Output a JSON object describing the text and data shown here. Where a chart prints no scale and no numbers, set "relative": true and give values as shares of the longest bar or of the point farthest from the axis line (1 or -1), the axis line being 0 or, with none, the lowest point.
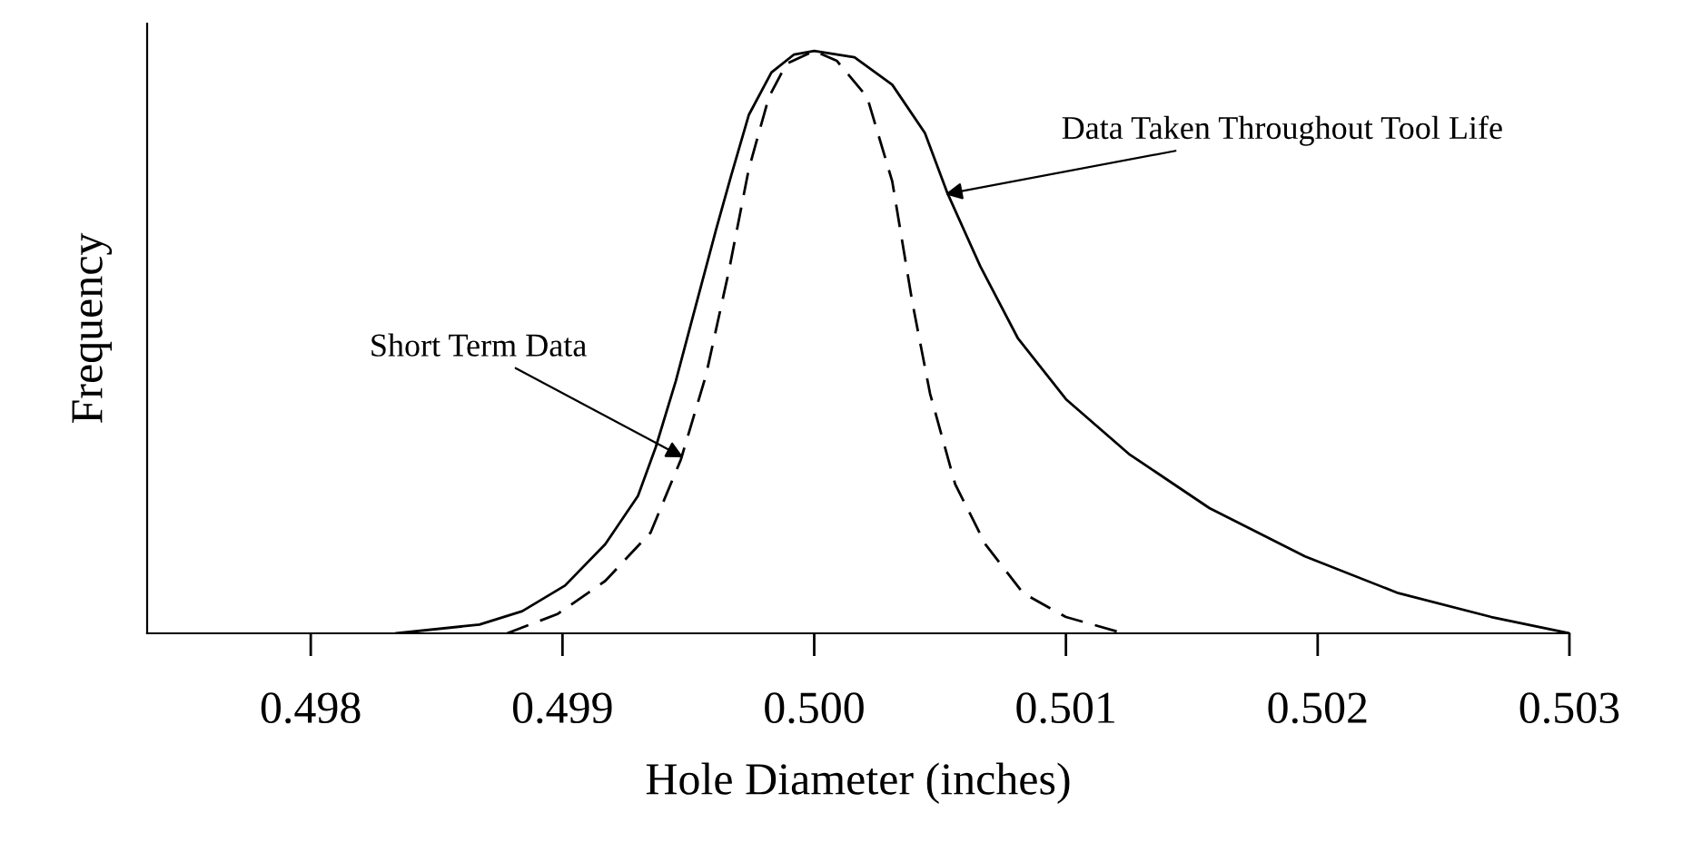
{
  "chart_data": {
    "type": "line",
    "xlabel": "Hole Diameter (inches)",
    "ylabel": "Frequency",
    "relative": true,
    "xlim": [
      0.49735,
      0.503
    ],
    "xticks": [
      {
        "value": 0.498,
        "label": "0.498"
      },
      {
        "value": 0.499,
        "label": "0.499"
      },
      {
        "value": 0.5,
        "label": "0.500"
      },
      {
        "value": 0.501,
        "label": "0.501"
      },
      {
        "value": 0.502,
        "label": "0.502"
      },
      {
        "value": 0.503,
        "label": "0.503"
      }
    ],
    "legend": false,
    "grid": false,
    "marker": "none",
    "series": [
      {
        "color": "#000000",
        "line_style": "solid",
        "x": [
          0.49834,
          0.49867,
          0.49884,
          0.49901,
          0.49917,
          0.4993,
          0.49937,
          0.49945,
          0.49952,
          0.49961,
          0.49967,
          0.49974,
          0.49983,
          0.49992,
          0.5,
          0.50016,
          0.50031,
          0.50044,
          0.50053,
          0.50066,
          0.50081,
          0.501,
          0.50125,
          0.50157,
          0.50195,
          0.50232,
          0.50269,
          0.503
        ],
        "values": [
          0,
          0.015,
          0.038,
          0.082,
          0.153,
          0.236,
          0.319,
          0.433,
          0.547,
          0.693,
          0.786,
          0.89,
          0.963,
          0.994,
          1.0,
          0.989,
          0.942,
          0.859,
          0.755,
          0.63,
          0.506,
          0.402,
          0.308,
          0.215,
          0.132,
          0.069,
          0.028,
          0
        ]
      },
      {
        "color": "#000000",
        "line_style": "dashed",
        "x": [
          0.49878,
          0.49898,
          0.49917,
          0.49935,
          0.49947,
          0.49957,
          0.49966,
          0.49974,
          0.49982,
          0.49989,
          0.5,
          0.50009,
          0.50021,
          0.50031,
          0.50039,
          0.50046,
          0.50056,
          0.50068,
          0.50083,
          0.501,
          0.50123
        ],
        "values": [
          0,
          0.033,
          0.09,
          0.173,
          0.298,
          0.443,
          0.62,
          0.797,
          0.921,
          0.978,
          1.0,
          0.983,
          0.921,
          0.776,
          0.568,
          0.412,
          0.256,
          0.153,
          0.069,
          0.028,
          0
        ]
      }
    ],
    "annotations": [
      {
        "text": "Short Term Data",
        "x": 0.49948,
        "y": 0.302
      },
      {
        "text": "Data Taken Throughout Tool Life",
        "x": 0.50052,
        "y": 0.754
      }
    ]
  }
}
